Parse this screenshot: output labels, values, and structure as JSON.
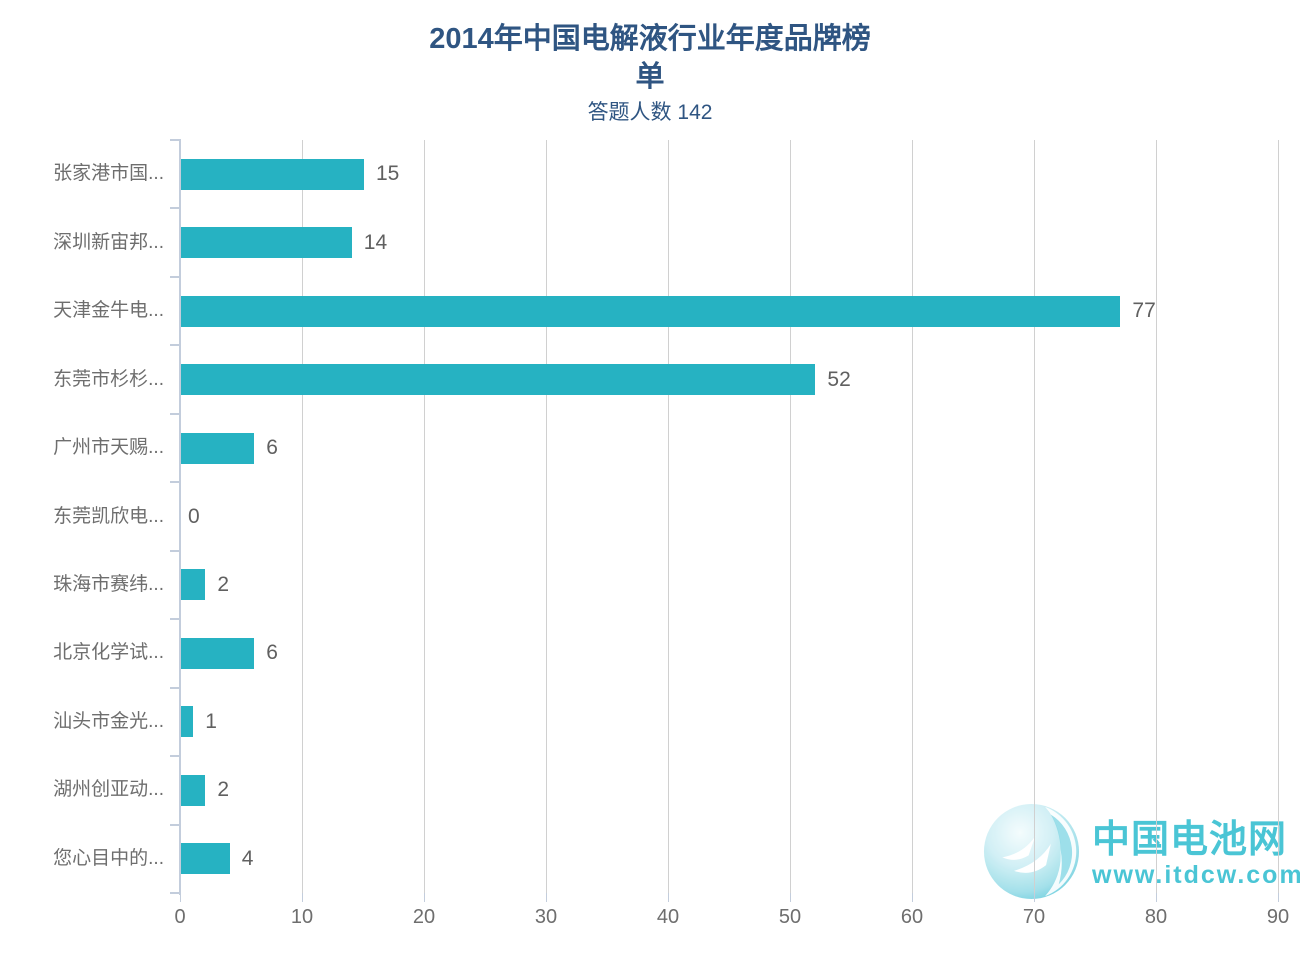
{
  "title": {
    "line1": "2014年中国电解液行业年度品牌榜",
    "line2": "单"
  },
  "subtitle": "答题人数 142",
  "chart_data": {
    "type": "bar",
    "orientation": "horizontal",
    "title": "2014年中国电解液行业年度品牌榜单",
    "subtitle": "答题人数 142",
    "respondent_count": 142,
    "categories": [
      "张家港市国...",
      "深圳新宙邦...",
      "天津金牛电...",
      "东莞市杉杉...",
      "广州市天赐...",
      "东莞凯欣电...",
      "珠海市赛纬...",
      "北京化学试...",
      "汕头市金光...",
      "湖州创亚动...",
      "您心目中的..."
    ],
    "values": [
      15,
      14,
      77,
      52,
      6,
      0,
      2,
      6,
      1,
      2,
      4
    ],
    "xlim": [
      0,
      90
    ],
    "x_ticks": [
      0,
      10,
      20,
      30,
      40,
      50,
      60,
      70,
      80,
      90
    ],
    "grid": true,
    "legend_position": "none",
    "bar_color": "#26B2C2"
  },
  "watermark": {
    "brand": "中国电池网",
    "site": "www.itdcw.com"
  },
  "colors": {
    "title": "#2F5582",
    "bar": "#26B2C2",
    "text": "#6E6E6E",
    "value_text": "#606060",
    "grid": "#D0D0D0",
    "axis": "#C3CDDC",
    "watermark": "#41C2D3"
  }
}
